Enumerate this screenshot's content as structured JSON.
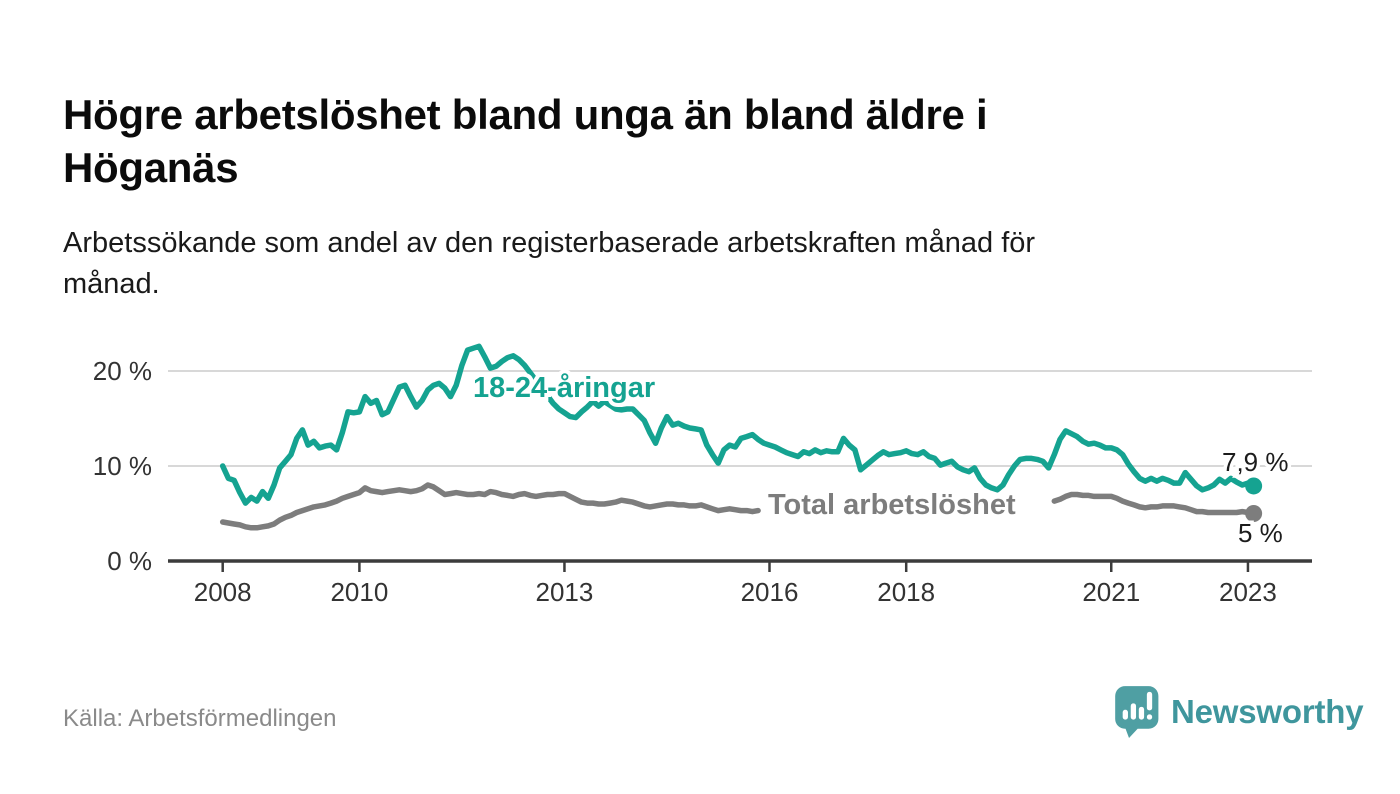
{
  "header": {
    "title_lines": [
      "Högre arbetslöshet bland unga än bland äldre i",
      "Höganäs"
    ],
    "subtitle_lines": [
      "Arbetssökande som andel av den registerbaserade arbetskraften månad för",
      "månad."
    ]
  },
  "footer": {
    "source": "Källa: Arbetsförmedlingen",
    "brand_name": "Newsworthy",
    "brand_color": "#3F969D",
    "brand_icon": "speech-bubble-bar-chart-icon"
  },
  "chart_data": {
    "type": "line",
    "x_unit": "month",
    "x_start_year": 2008,
    "x_end_label_value": "Feb 2023",
    "x_tick_years": [
      2008,
      2010,
      2013,
      2016,
      2018,
      2021,
      2023
    ],
    "x_tick_labels": [
      "2008",
      "2010",
      "2013",
      "2016",
      "2018",
      "2021",
      "2023"
    ],
    "y_ticks": [
      0,
      10,
      20
    ],
    "y_tick_labels": [
      "0 %",
      "10 %",
      "20 %"
    ],
    "ylim": [
      0,
      24
    ],
    "grid": "horizontal-only",
    "legend_position": "inline-labels-on-lines",
    "series": [
      {
        "name": "18-24-åringar",
        "color": "#15A391",
        "end_label": "7,9 %",
        "end_value": 7.9,
        "values": [
          10.0,
          8.7,
          8.5,
          7.2,
          6.1,
          6.7,
          6.3,
          7.3,
          6.6,
          8.0,
          9.8,
          10.5,
          11.2,
          12.9,
          13.8,
          12.2,
          12.6,
          11.9,
          12.1,
          12.2,
          11.7,
          13.5,
          15.7,
          15.6,
          15.7,
          17.3,
          16.6,
          16.9,
          15.4,
          15.7,
          17.0,
          18.3,
          18.5,
          17.3,
          16.2,
          16.9,
          18.0,
          18.5,
          18.7,
          18.2,
          17.3,
          18.5,
          20.6,
          22.2,
          22.4,
          22.6,
          21.5,
          20.3,
          20.5,
          21.0,
          21.4,
          21.6,
          21.2,
          20.6,
          19.8,
          19.0,
          18.2,
          17.4,
          16.6,
          16.0,
          15.6,
          15.2,
          15.1,
          15.7,
          16.2,
          16.8,
          16.3,
          16.8,
          16.4,
          16.0,
          15.9,
          16.0,
          16.0,
          15.4,
          14.8,
          13.5,
          12.4,
          14.0,
          15.2,
          14.3,
          14.5,
          14.2,
          14.0,
          13.9,
          13.8,
          12.2,
          11.2,
          10.3,
          11.7,
          12.2,
          12.0,
          12.9,
          13.1,
          13.3,
          12.8,
          12.4,
          12.2,
          12.0,
          11.7,
          11.4,
          11.2,
          11.0,
          11.5,
          11.3,
          11.7,
          11.4,
          11.6,
          11.5,
          11.5,
          12.9,
          12.2,
          11.7,
          9.6,
          10.1,
          10.6,
          11.1,
          11.5,
          11.2,
          11.3,
          11.4,
          11.6,
          11.3,
          11.2,
          11.5,
          11.0,
          10.8,
          10.1,
          10.3,
          10.5,
          9.9,
          9.6,
          9.4,
          9.8,
          8.7,
          8.0,
          7.7,
          7.5,
          8.0,
          9.1,
          10.0,
          10.7,
          10.8,
          10.8,
          10.7,
          10.5,
          9.8,
          11.2,
          12.8,
          13.7,
          13.4,
          13.1,
          12.6,
          12.3,
          12.4,
          12.2,
          11.9,
          11.9,
          11.7,
          11.2,
          10.2,
          9.4,
          8.7,
          8.4,
          8.7,
          8.4,
          8.7,
          8.5,
          8.2,
          8.2,
          9.3,
          8.6,
          7.9,
          7.5,
          7.7,
          8.0,
          8.6,
          8.2,
          8.7,
          8.3,
          8.0,
          8.2,
          7.9
        ]
      },
      {
        "name": "Total arbetslöshet",
        "color": "#7D7D7D",
        "end_label": "5 %",
        "end_value": 5.0,
        "note": "line hidden behind its inline label between Dec 2015 and Feb 2020",
        "values": [
          4.1,
          4.0,
          3.9,
          3.8,
          3.6,
          3.5,
          3.5,
          3.6,
          3.7,
          3.9,
          4.3,
          4.6,
          4.8,
          5.1,
          5.3,
          5.5,
          5.7,
          5.8,
          5.9,
          6.1,
          6.3,
          6.6,
          6.8,
          7.0,
          7.2,
          7.7,
          7.4,
          7.3,
          7.2,
          7.3,
          7.4,
          7.5,
          7.4,
          7.3,
          7.4,
          7.6,
          8.0,
          7.8,
          7.4,
          7.0,
          7.1,
          7.2,
          7.1,
          7.0,
          7.0,
          7.1,
          7.0,
          7.3,
          7.2,
          7.0,
          6.9,
          6.8,
          7.0,
          7.1,
          6.9,
          6.8,
          6.9,
          7.0,
          7.0,
          7.1,
          7.1,
          6.8,
          6.5,
          6.2,
          6.1,
          6.1,
          6.0,
          6.0,
          6.1,
          6.2,
          6.4,
          6.3,
          6.2,
          6.0,
          5.8,
          5.7,
          5.8,
          5.9,
          6.0,
          6.0,
          5.9,
          5.9,
          5.8,
          5.8,
          5.9,
          5.7,
          5.5,
          5.3,
          5.4,
          5.5,
          5.4,
          5.3,
          5.3,
          5.2,
          5.3,
          null,
          null,
          null,
          null,
          null,
          null,
          null,
          null,
          null,
          null,
          null,
          null,
          null,
          null,
          null,
          null,
          null,
          null,
          null,
          null,
          null,
          null,
          null,
          null,
          null,
          null,
          null,
          null,
          null,
          null,
          null,
          null,
          null,
          null,
          null,
          null,
          null,
          null,
          null,
          null,
          null,
          null,
          null,
          null,
          null,
          null,
          null,
          null,
          null,
          null,
          null,
          6.3,
          6.5,
          6.8,
          7.0,
          7.0,
          6.9,
          6.9,
          6.8,
          6.8,
          6.8,
          6.8,
          6.6,
          6.3,
          6.1,
          5.9,
          5.7,
          5.6,
          5.7,
          5.7,
          5.8,
          5.8,
          5.8,
          5.7,
          5.6,
          5.4,
          5.2,
          5.2,
          5.1,
          5.1,
          5.1,
          5.1,
          5.1,
          5.1,
          5.2,
          5.1,
          5.0
        ]
      }
    ]
  }
}
